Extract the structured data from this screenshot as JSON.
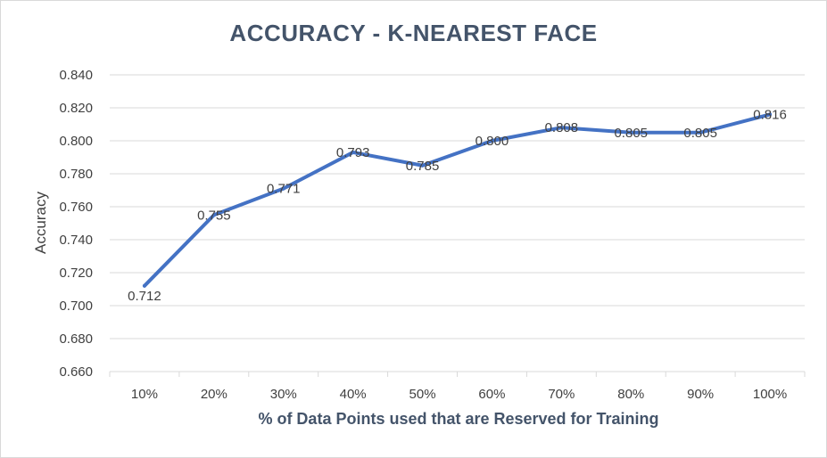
{
  "chart_data": {
    "type": "line",
    "title": "ACCURACY - K-NEAREST FACE",
    "xlabel": "% of Data Points used that are Reserved for Training",
    "ylabel": "Accuracy",
    "categories": [
      "10%",
      "20%",
      "30%",
      "40%",
      "50%",
      "60%",
      "70%",
      "80%",
      "90%",
      "100%"
    ],
    "series": [
      {
        "values": [
          0.712,
          0.755,
          0.771,
          0.793,
          0.785,
          0.8,
          0.808,
          0.805,
          0.805,
          0.816
        ],
        "data_labels": [
          "0.712",
          "0.755",
          "0.771",
          "0.793",
          "0.785",
          "0.800",
          "0.808",
          "0.805",
          "0.805",
          "0.816"
        ]
      }
    ],
    "yticks": [
      "0.660",
      "0.680",
      "0.700",
      "0.720",
      "0.740",
      "0.760",
      "0.780",
      "0.800",
      "0.820",
      "0.840"
    ],
    "ylim": [
      0.66,
      0.84
    ],
    "grid": true,
    "colors": {
      "line": "#4472c4",
      "grid": "#d9d9d9",
      "title": "#44546a",
      "text": "#404040"
    }
  }
}
